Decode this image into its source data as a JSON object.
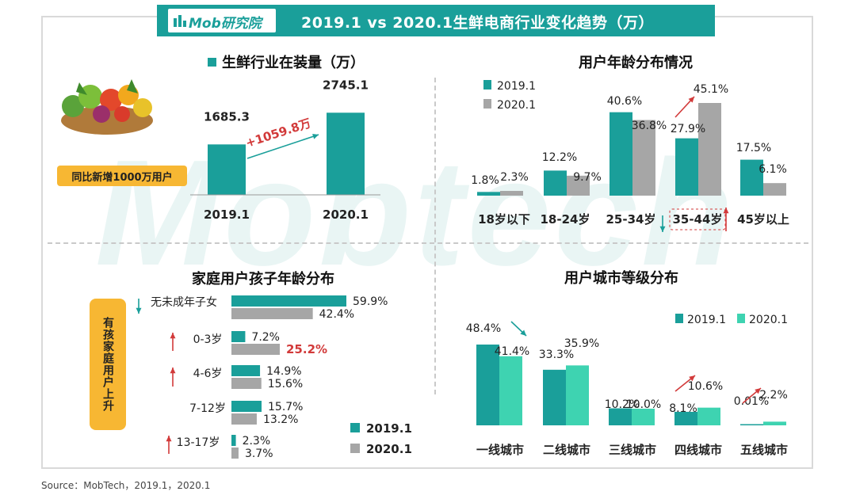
{
  "header": {
    "logo": "Mob研究院",
    "title": "2019.1 vs 2020.1生鲜电商行业变化趋势（万）"
  },
  "watermark": "Mobtech",
  "source": "Source：MobTech，2019.1，2020.1",
  "badges": {
    "new_users": "同比新增1000万用户",
    "kids_up": "有孩家庭用户上升"
  },
  "colors": {
    "teal": "#1a9f9a",
    "gray": "#a6a6a6",
    "mint": "#3ed3b1",
    "orange": "#f7b733",
    "red": "#d23a3a"
  },
  "chart_data": [
    {
      "id": "installs",
      "type": "bar",
      "title": "生鲜行业在装量（万）",
      "categories": [
        "2019.1",
        "2020.1"
      ],
      "values": [
        1685.3,
        2745.1
      ],
      "value_labels": [
        "1685.3",
        "2745.1"
      ],
      "annotation": "+1059.8万",
      "ylim": [
        0,
        4000
      ]
    },
    {
      "id": "age",
      "type": "bar",
      "title": "用户年龄分布情况",
      "categories": [
        "18岁以下",
        "18-24岁",
        "25-34岁",
        "35-44岁",
        "45岁以上"
      ],
      "series": [
        {
          "name": "2019.1",
          "values": [
            1.8,
            12.2,
            40.6,
            27.9,
            17.5
          ],
          "labels": [
            "1.8%",
            "12.2%",
            "40.6%",
            "27.9%",
            "17.5%"
          ]
        },
        {
          "name": "2020.1",
          "values": [
            2.3,
            9.7,
            36.8,
            45.1,
            6.1
          ],
          "labels": [
            "2.3%",
            "9.7%",
            "36.8%",
            "45.1%",
            "6.1%"
          ]
        }
      ],
      "ylim": [
        0,
        50
      ]
    },
    {
      "id": "kids",
      "type": "bar",
      "orientation": "horizontal",
      "title": "家庭用户孩子年龄分布",
      "categories": [
        "无未成年子女",
        "0-3岁",
        "4-6岁",
        "7-12岁",
        "13-17岁"
      ],
      "series": [
        {
          "name": "2019.1",
          "values": [
            59.9,
            7.2,
            14.9,
            15.7,
            2.3
          ],
          "labels": [
            "59.9%",
            "7.2%",
            "14.9%",
            "15.7%",
            "2.3%"
          ]
        },
        {
          "name": "2020.1",
          "values": [
            42.4,
            25.2,
            15.6,
            13.2,
            3.7
          ],
          "labels": [
            "42.4%",
            "25.2%",
            "15.6%",
            "13.2%",
            "3.7%"
          ]
        }
      ],
      "xlim": [
        0,
        70
      ]
    },
    {
      "id": "city",
      "type": "bar",
      "title": "用户城市等级分布",
      "categories": [
        "一线城市",
        "二线城市",
        "三线城市",
        "四线城市",
        "五线城市"
      ],
      "series": [
        {
          "name": "2019.1",
          "values": [
            48.4,
            33.3,
            10.2,
            8.1,
            0.01
          ],
          "labels": [
            "48.4%",
            "33.3%",
            "10.2%",
            "8.1%",
            "0.01%"
          ]
        },
        {
          "name": "2020.1",
          "values": [
            41.4,
            35.9,
            10.0,
            10.6,
            2.2
          ],
          "labels": [
            "41.4%",
            "35.9%",
            "10.0%",
            "10.6%",
            "2.2%"
          ]
        }
      ],
      "ylim": [
        0,
        55
      ]
    }
  ]
}
